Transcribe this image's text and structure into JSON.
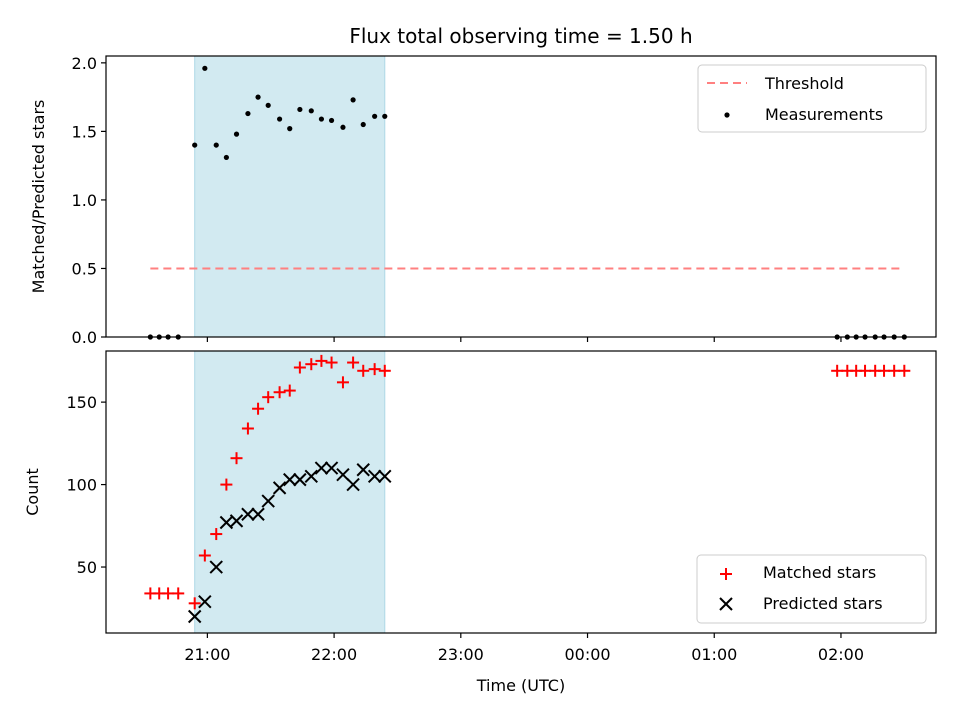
{
  "chart_data": {
    "type": "scatter",
    "title": "Flux total observing time = 1.50 h",
    "xlabel": "Time (UTC)",
    "x_ticks": [
      "21:00",
      "22:00",
      "23:00",
      "00:00",
      "01:00",
      "02:00"
    ],
    "x_tick_hours": [
      21,
      22,
      23,
      24,
      25,
      26
    ],
    "xlim_hours": [
      20.2,
      26.75
    ],
    "highlight_span_hours": [
      20.9,
      22.4
    ],
    "panels": [
      {
        "ylabel": "Matched/Predicted stars",
        "ylim": [
          0,
          2.05
        ],
        "yticks": [
          0.0,
          0.5,
          1.0,
          1.5,
          2.0
        ],
        "ytick_labels": [
          "0.0",
          "0.5",
          "1.0",
          "1.5",
          "2.0"
        ],
        "legend": {
          "placement": "upper right",
          "entries": [
            "Threshold",
            "Measurements"
          ]
        },
        "series": [
          {
            "name": "Threshold",
            "kind": "line",
            "style": "dashed",
            "color": "#ff8080",
            "x": [
              20.55,
              26.5
            ],
            "values": [
              0.5,
              0.5
            ]
          },
          {
            "name": "Measurements",
            "kind": "scatter",
            "marker": "dot",
            "color": "#000000",
            "x": [
              20.55,
              20.62,
              20.69,
              20.77,
              20.9,
              20.98,
              21.07,
              21.15,
              21.23,
              21.32,
              21.4,
              21.48,
              21.57,
              21.65,
              21.73,
              21.82,
              21.9,
              21.98,
              22.07,
              22.15,
              22.23,
              22.32,
              22.4,
              25.97,
              26.05,
              26.12,
              26.19,
              26.27,
              26.34,
              26.42,
              26.5
            ],
            "values": [
              0.0,
              0.0,
              0.0,
              0.0,
              1.4,
              1.96,
              1.4,
              1.31,
              1.48,
              1.63,
              1.75,
              1.69,
              1.59,
              1.52,
              1.66,
              1.65,
              1.59,
              1.58,
              1.53,
              1.73,
              1.55,
              1.61,
              1.61,
              0.0,
              0.0,
              0.0,
              0.0,
              0.0,
              0.0,
              0.0,
              0.0
            ]
          }
        ]
      },
      {
        "ylabel": "Count",
        "ylim": [
          10,
          181
        ],
        "yticks": [
          50,
          100,
          150
        ],
        "ytick_labels": [
          "50",
          "100",
          "150"
        ],
        "legend": {
          "placement": "lower right",
          "entries": [
            "Matched stars",
            "Predicted stars"
          ]
        },
        "series": [
          {
            "name": "Matched stars",
            "kind": "scatter",
            "marker": "plus",
            "color": "#ff0000",
            "x": [
              20.55,
              20.62,
              20.69,
              20.77,
              20.9,
              20.98,
              21.07,
              21.15,
              21.23,
              21.32,
              21.4,
              21.48,
              21.57,
              21.65,
              21.73,
              21.82,
              21.9,
              21.98,
              22.07,
              22.15,
              22.23,
              22.32,
              22.4,
              25.97,
              26.05,
              26.12,
              26.19,
              26.27,
              26.34,
              26.42,
              26.5
            ],
            "values": [
              34,
              34,
              34,
              34,
              28,
              57,
              70,
              100,
              116,
              134,
              146,
              153,
              156,
              157,
              171,
              173,
              175,
              174,
              162,
              174,
              169,
              170,
              169,
              169,
              169,
              169,
              169,
              169,
              169,
              169,
              169
            ]
          },
          {
            "name": "Predicted stars",
            "kind": "scatter",
            "marker": "x",
            "color": "#000000",
            "x": [
              20.9,
              20.98,
              21.07,
              21.15,
              21.23,
              21.32,
              21.4,
              21.48,
              21.57,
              21.65,
              21.73,
              21.82,
              21.9,
              21.98,
              22.07,
              22.15,
              22.23,
              22.32,
              22.4
            ],
            "values": [
              20,
              29,
              50,
              77,
              78,
              82,
              82,
              90,
              98,
              103,
              103,
              105,
              110,
              110,
              106,
              100,
              109,
              105,
              105
            ]
          }
        ]
      }
    ]
  },
  "colors": {
    "highlight": "#add8e6",
    "threshold": "#ff8080",
    "matched": "#ff0000",
    "predicted": "#000000",
    "measurement": "#000000"
  }
}
